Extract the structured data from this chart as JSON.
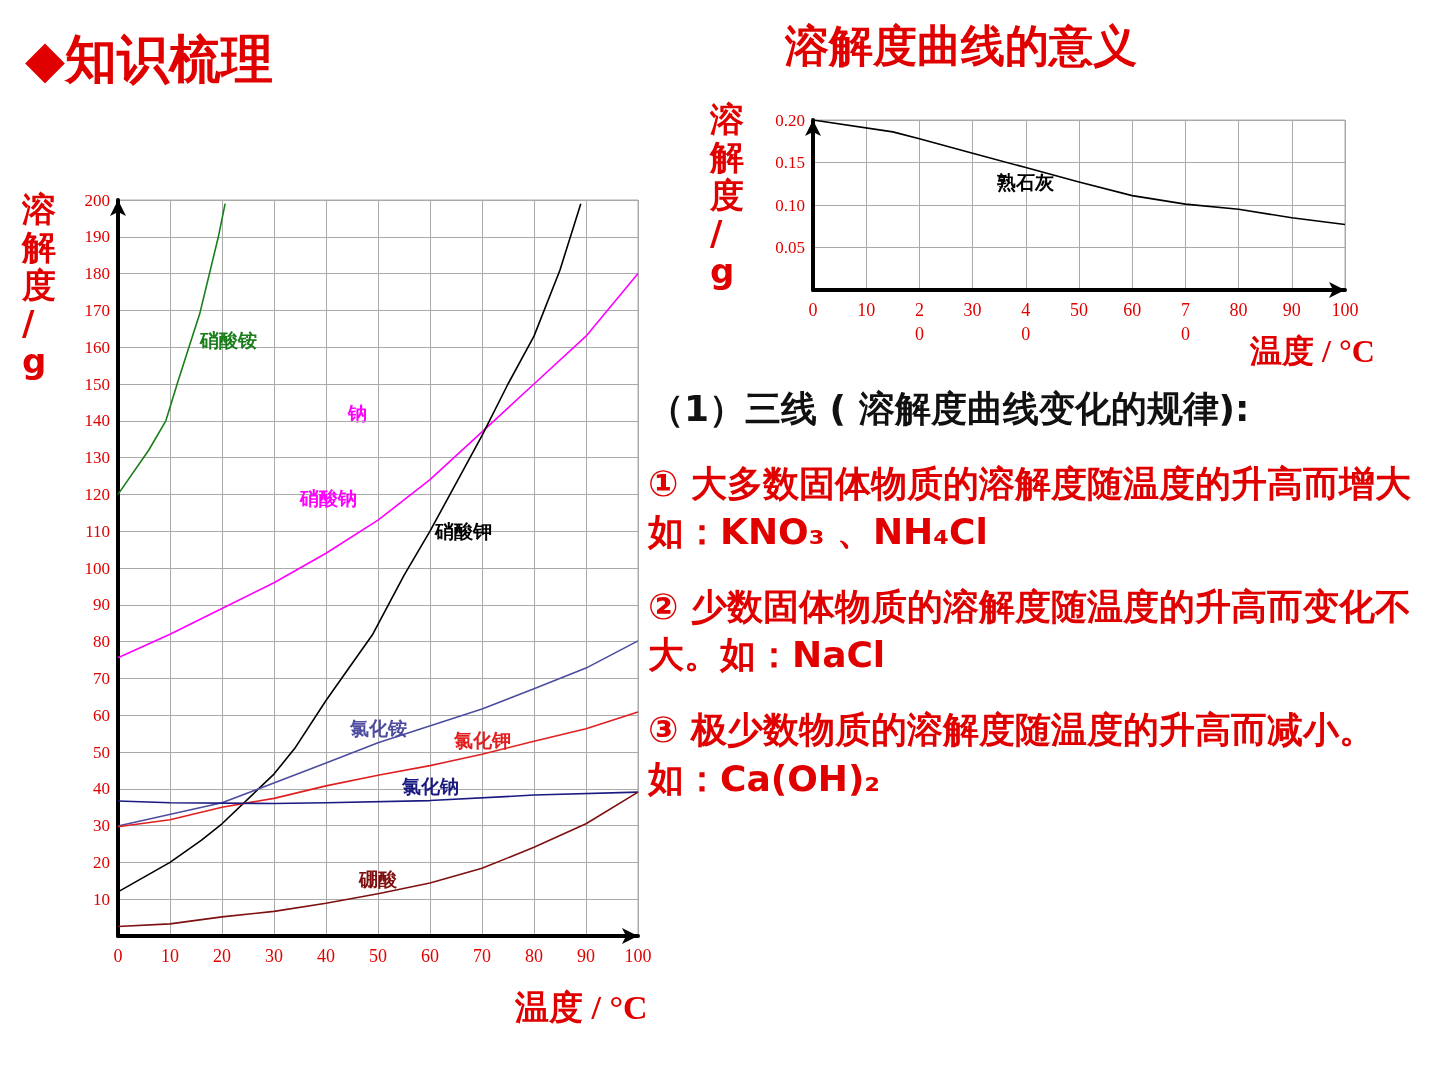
{
  "chart_data": [
    {
      "type": "line",
      "title": "◆知识梳理",
      "xlabel": "温度 / °C",
      "ylabel": "溶解度/g",
      "xlim": [
        0,
        100
      ],
      "ylim": [
        0,
        200
      ],
      "xticks": [
        0,
        10,
        20,
        30,
        40,
        50,
        60,
        70,
        80,
        90,
        100
      ],
      "yticks": [
        10,
        20,
        30,
        40,
        50,
        60,
        70,
        80,
        90,
        100,
        110,
        120,
        130,
        140,
        150,
        160,
        170,
        180,
        190,
        200
      ],
      "grid": true,
      "marker": "none",
      "annotations": [
        "钠"
      ],
      "series": [
        {
          "name": "硝酸铵",
          "color": "#1a7f1a",
          "x": [
            0,
            5.9,
            9.2,
            11.6,
            14.1,
            15.7,
            19.3,
            20.6
          ],
          "values": [
            120,
            132,
            140,
            151,
            162,
            169,
            190,
            199
          ]
        },
        {
          "name": "硝酸钠",
          "color": "#ff00ff",
          "x": [
            0,
            10,
            20,
            30,
            35,
            40,
            50,
            60,
            70,
            80,
            90,
            100
          ],
          "values": [
            75.6,
            82,
            89,
            96,
            100,
            104,
            113,
            124,
            137,
            150,
            163,
            180
          ]
        },
        {
          "name": "硝酸钾",
          "color": "#000000",
          "x": [
            0,
            10,
            16,
            20,
            30,
            34,
            40,
            44,
            49,
            55,
            60,
            70,
            75,
            80,
            85,
            89
          ],
          "values": [
            12,
            20,
            26,
            30.5,
            44,
            51,
            64,
            72,
            82,
            98,
            110,
            136,
            150,
            163,
            181,
            199
          ]
        },
        {
          "name": "氯化铵",
          "color": "#4d4d9f",
          "x": [
            0,
            20,
            40,
            50,
            70,
            80,
            90,
            100
          ],
          "values": [
            29.9,
            36.2,
            47,
            52.5,
            61.7,
            67.2,
            72.8,
            80.2
          ]
        },
        {
          "name": "氯化钾",
          "color": "#e02020",
          "x": [
            0,
            10,
            20,
            30,
            40,
            50,
            60,
            70,
            80,
            90,
            100
          ],
          "values": [
            29.7,
            31.6,
            35,
            37.4,
            40.8,
            43.7,
            46.3,
            49.4,
            52.9,
            56.3,
            60.9
          ]
        },
        {
          "name": "氯化钠",
          "color": "#1a1a80",
          "x": [
            0,
            10,
            30,
            40,
            60,
            80,
            100
          ],
          "values": [
            36.7,
            36.2,
            36,
            36.2,
            36.8,
            38.3,
            39.1
          ]
        },
        {
          "name": "硼酸",
          "color": "#7f1010",
          "x": [
            0,
            10,
            20,
            30,
            40,
            50,
            60,
            70,
            80,
            90,
            100
          ],
          "values": [
            2.6,
            3.3,
            5.2,
            6.7,
            8.9,
            11.5,
            14.4,
            18.4,
            24.1,
            30.5,
            39.1
          ]
        }
      ]
    },
    {
      "type": "line",
      "title": "溶解度曲线的意义",
      "xlabel": "温度 / °C",
      "ylabel": "溶解度/g",
      "xlim": [
        0,
        100
      ],
      "ylim": [
        0,
        0.2
      ],
      "xticks": [
        0,
        10,
        {
          "value": 20,
          "label": "2\n0"
        },
        30,
        {
          "value": 40,
          "label": "4\n0"
        },
        50,
        60,
        {
          "value": 70,
          "label": "7\n0"
        },
        80,
        90,
        100
      ],
      "yticks": [
        0.05,
        {
          "value": 0.1,
          "label": "0.10"
        },
        0.15,
        {
          "value": 0.2,
          "label": "0.20"
        }
      ],
      "grid": true,
      "marker": "none",
      "series": [
        {
          "name": "熟石灰",
          "color": "#000000",
          "x": [
            0,
            15,
            20,
            30,
            40,
            50,
            60,
            70,
            80,
            90,
            100
          ],
          "values": [
            0.2,
            0.186,
            0.178,
            0.161,
            0.144,
            0.127,
            0.111,
            0.101,
            0.095,
            0.085,
            0.077
          ]
        }
      ]
    },
    {
      "type": "other",
      "annotations": [
        "（1）三线 ( 溶解度曲线变化的规律):",
        "① 大多数固体物质的溶解度随温度的升高而增大如：KNO₃ 、NH₄Cl",
        "② 少数固体物质的溶解度随温度的升高而变化不大。如：NaCl",
        "③ 极少数物质的溶解度随温度的升高而减小。如：Ca(OH)₂"
      ]
    }
  ]
}
